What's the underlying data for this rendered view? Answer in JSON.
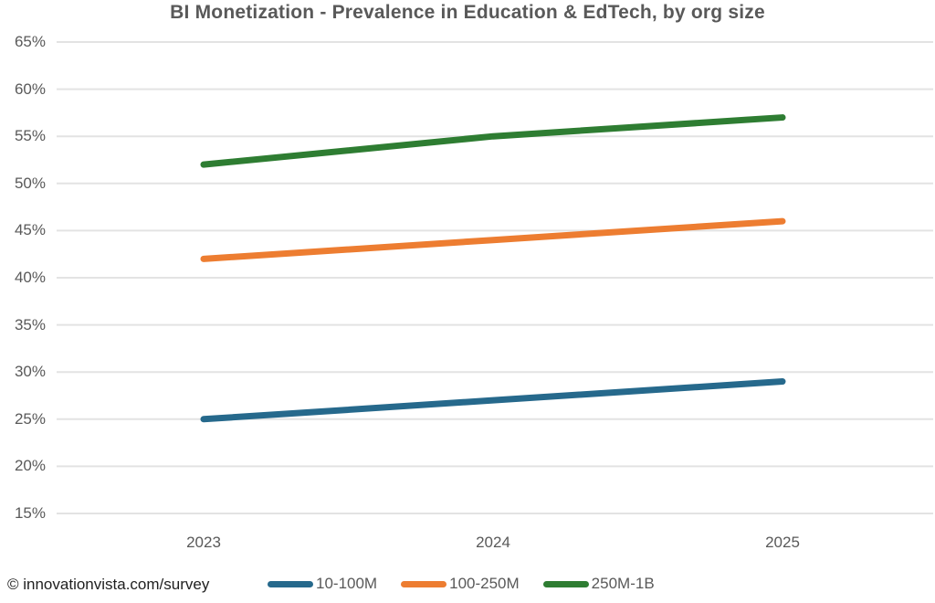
{
  "title": "BI Monetization - Prevalence in Education & EdTech, by org size",
  "footer": {
    "attribution": "© innovationvista.com/survey"
  },
  "colors": {
    "title_text": "#595959",
    "axis_text": "#595959",
    "gridline": "#e3e3e3",
    "series_blue": "#26698c",
    "series_orange": "#ed7d31",
    "series_green": "#2e7d32"
  },
  "chart_data": {
    "type": "line",
    "title": "BI Monetization - Prevalence in Education & EdTech, by org size",
    "categories": [
      "2023",
      "2024",
      "2025"
    ],
    "series": [
      {
        "name": "10-100M",
        "color": "#26698c",
        "values": [
          25,
          27,
          29
        ]
      },
      {
        "name": "100-250M",
        "color": "#ed7d31",
        "values": [
          42,
          44,
          46
        ]
      },
      {
        "name": "250M-1B",
        "color": "#2e7d32",
        "values": [
          52,
          55,
          57
        ]
      }
    ],
    "xlabel": "",
    "ylabel": "",
    "ylim": [
      15,
      65
    ],
    "ytick_step": 5,
    "ytick_labels": [
      "65%",
      "60%",
      "55%",
      "50%",
      "45%",
      "40%",
      "35%",
      "30%",
      "25%",
      "20%",
      "15%"
    ],
    "grid": "horizontal",
    "legend_position": "bottom"
  }
}
